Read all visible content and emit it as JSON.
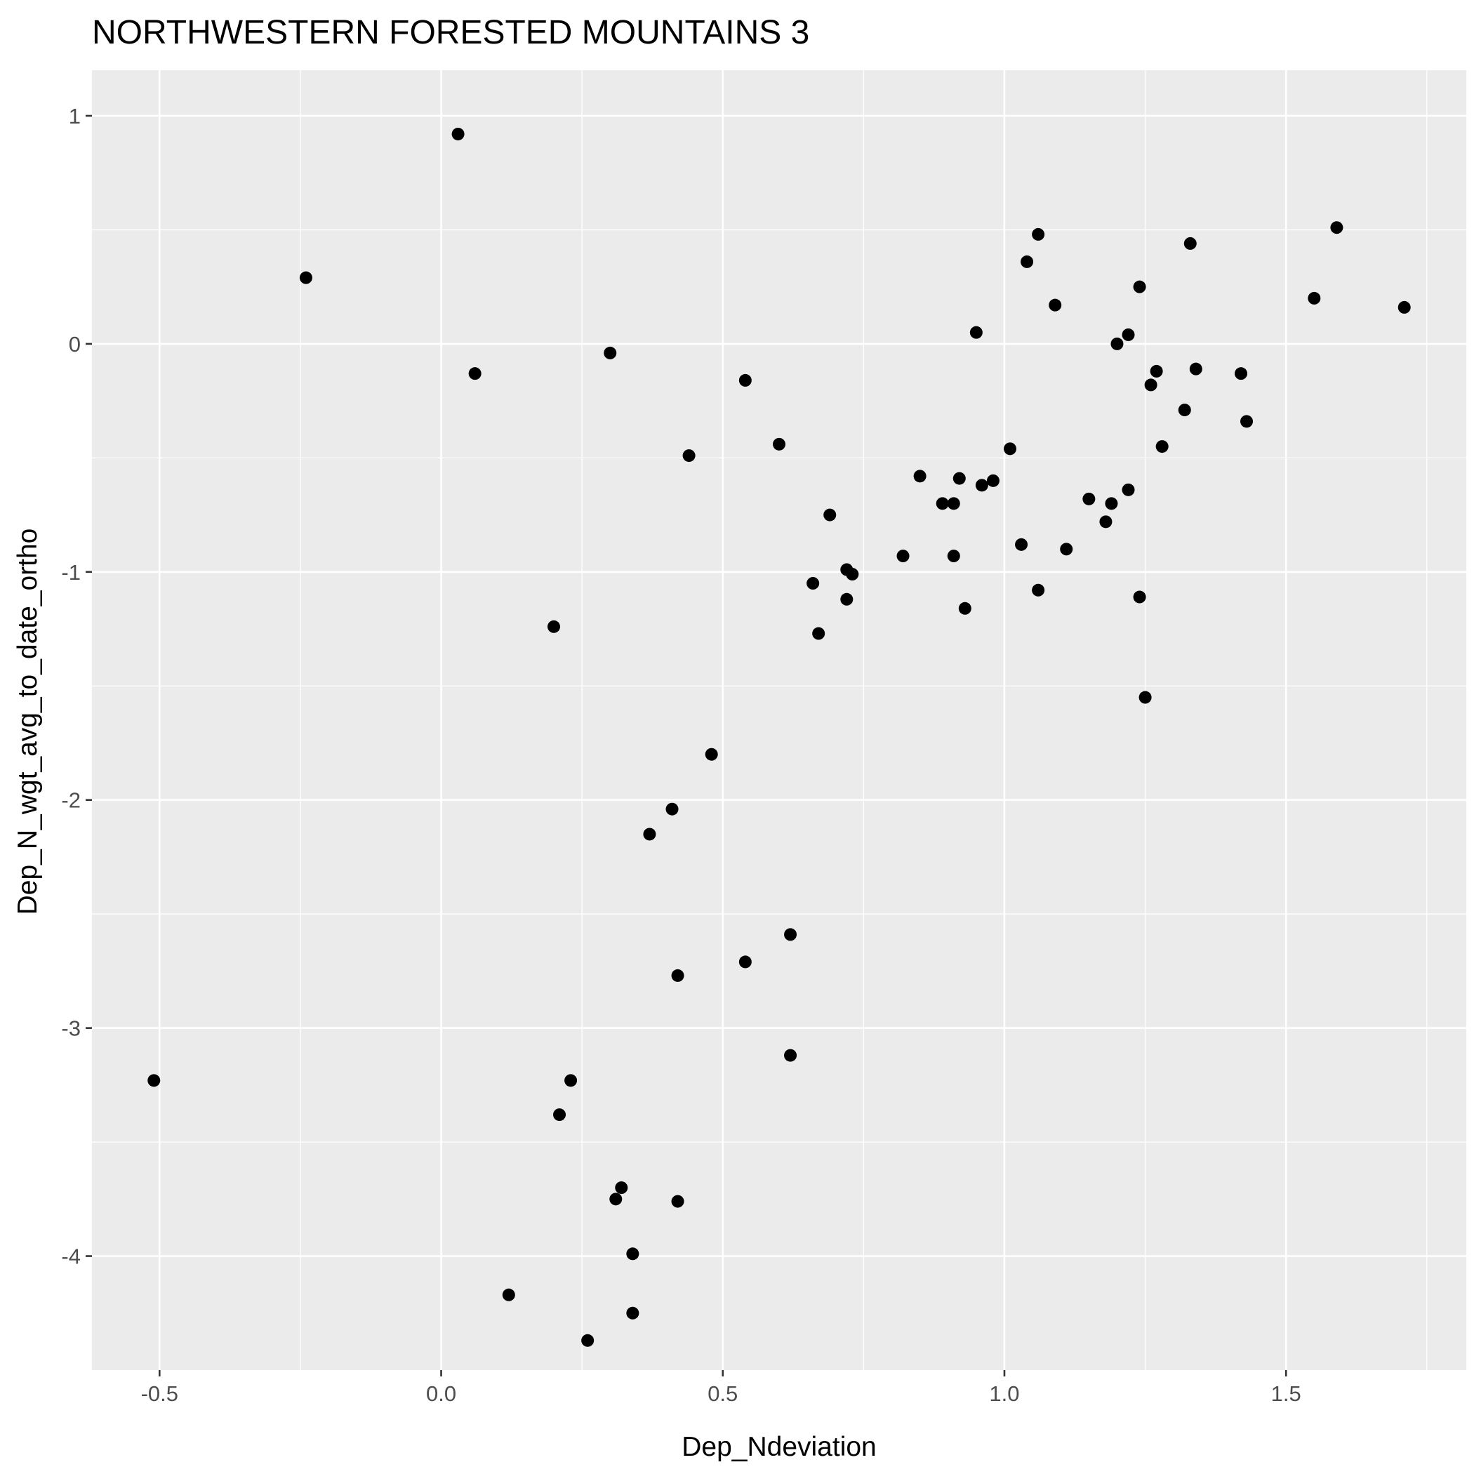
{
  "chart_data": {
    "type": "scatter",
    "title": "NORTHWESTERN FORESTED MOUNTAINS 3",
    "xlabel": "Dep_Ndeviation",
    "ylabel": "Dep_N_wgt_avg_to_date_ortho",
    "xlim": [
      -0.62,
      1.82
    ],
    "ylim": [
      -4.5,
      1.2
    ],
    "x_ticks": [
      -0.5,
      0.0,
      0.5,
      1.0,
      1.5
    ],
    "x_tick_labels": [
      "-0.5",
      "0.0",
      "0.5",
      "1.0",
      "1.5"
    ],
    "y_ticks": [
      1,
      0,
      -1,
      -2,
      -3,
      -4
    ],
    "y_tick_labels": [
      "1",
      "0",
      "-1",
      "-2",
      "-3",
      "-4"
    ],
    "grid": true,
    "background_color": "#ebebeb",
    "point_color": "#000000",
    "points": [
      {
        "x": 0.03,
        "y": 0.92
      },
      {
        "x": -0.24,
        "y": 0.29
      },
      {
        "x": 0.06,
        "y": -0.13
      },
      {
        "x": 0.3,
        "y": -0.04
      },
      {
        "x": 0.54,
        "y": -0.16
      },
      {
        "x": 0.6,
        "y": -0.44
      },
      {
        "x": 0.44,
        "y": -0.49
      },
      {
        "x": 0.2,
        "y": -1.24
      },
      {
        "x": 0.69,
        "y": -0.75
      },
      {
        "x": 0.72,
        "y": -0.99
      },
      {
        "x": 0.73,
        "y": -1.01
      },
      {
        "x": 0.66,
        "y": -1.05
      },
      {
        "x": 0.72,
        "y": -1.12
      },
      {
        "x": 0.67,
        "y": -1.27
      },
      {
        "x": 0.82,
        "y": -0.93
      },
      {
        "x": 0.85,
        "y": -0.58
      },
      {
        "x": 0.89,
        "y": -0.7
      },
      {
        "x": 0.91,
        "y": -0.7
      },
      {
        "x": 0.92,
        "y": -0.59
      },
      {
        "x": 0.96,
        "y": -0.62
      },
      {
        "x": 0.98,
        "y": -0.6
      },
      {
        "x": 0.91,
        "y": -0.93
      },
      {
        "x": 0.93,
        "y": -1.16
      },
      {
        "x": 0.95,
        "y": 0.05
      },
      {
        "x": 1.01,
        "y": -0.46
      },
      {
        "x": 1.03,
        "y": -0.88
      },
      {
        "x": 1.06,
        "y": -1.08
      },
      {
        "x": 1.04,
        "y": 0.36
      },
      {
        "x": 1.06,
        "y": 0.48
      },
      {
        "x": 1.09,
        "y": 0.17
      },
      {
        "x": 1.11,
        "y": -0.9
      },
      {
        "x": 1.15,
        "y": -0.68
      },
      {
        "x": 1.18,
        "y": -0.78
      },
      {
        "x": 1.19,
        "y": -0.7
      },
      {
        "x": 1.2,
        "y": 0.0
      },
      {
        "x": 1.22,
        "y": -0.64
      },
      {
        "x": 1.22,
        "y": 0.04
      },
      {
        "x": 1.24,
        "y": 0.25
      },
      {
        "x": 1.24,
        "y": -1.11
      },
      {
        "x": 1.25,
        "y": -1.55
      },
      {
        "x": 1.26,
        "y": -0.18
      },
      {
        "x": 1.27,
        "y": -0.12
      },
      {
        "x": 1.28,
        "y": -0.45
      },
      {
        "x": 1.32,
        "y": -0.29
      },
      {
        "x": 1.33,
        "y": 0.44
      },
      {
        "x": 1.34,
        "y": -0.11
      },
      {
        "x": 1.42,
        "y": -0.13
      },
      {
        "x": 1.43,
        "y": -0.34
      },
      {
        "x": 1.55,
        "y": 0.2
      },
      {
        "x": 1.59,
        "y": 0.51
      },
      {
        "x": 1.71,
        "y": 0.16
      },
      {
        "x": 0.48,
        "y": -1.8
      },
      {
        "x": 0.41,
        "y": -2.04
      },
      {
        "x": 0.37,
        "y": -2.15
      },
      {
        "x": 0.62,
        "y": -2.59
      },
      {
        "x": 0.54,
        "y": -2.71
      },
      {
        "x": 0.42,
        "y": -2.77
      },
      {
        "x": 0.62,
        "y": -3.12
      },
      {
        "x": -0.51,
        "y": -3.23
      },
      {
        "x": 0.23,
        "y": -3.23
      },
      {
        "x": 0.21,
        "y": -3.38
      },
      {
        "x": 0.32,
        "y": -3.7
      },
      {
        "x": 0.31,
        "y": -3.75
      },
      {
        "x": 0.42,
        "y": -3.76
      },
      {
        "x": 0.34,
        "y": -3.99
      },
      {
        "x": 0.12,
        "y": -4.17
      },
      {
        "x": 0.34,
        "y": -4.25
      },
      {
        "x": 0.26,
        "y": -4.37
      }
    ]
  }
}
